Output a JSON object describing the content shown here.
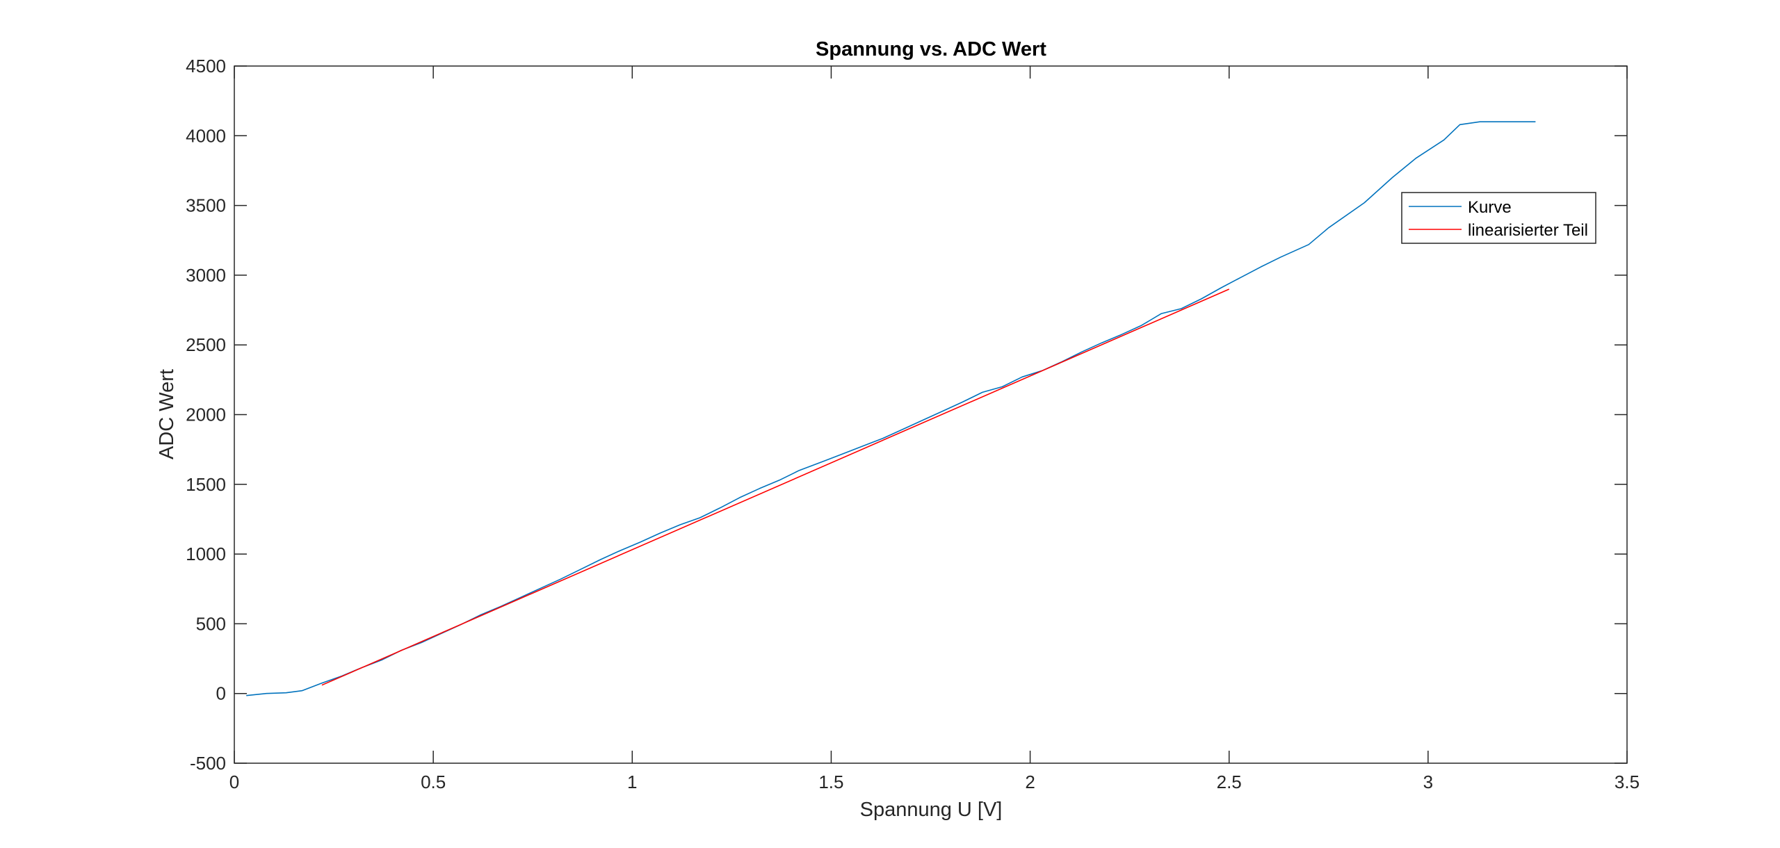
{
  "chart_data": {
    "type": "line",
    "title": "Spannung vs. ADC Wert",
    "xlabel": "Spannung U [V]",
    "ylabel": "ADC Wert",
    "xlim": [
      0,
      3.5
    ],
    "ylim": [
      -500,
      4500
    ],
    "xticks": [
      0,
      0.5,
      1,
      1.5,
      2,
      2.5,
      3,
      3.5
    ],
    "xtick_labels": [
      "0",
      "0.5",
      "1",
      "1.5",
      "2",
      "2.5",
      "3",
      "3.5"
    ],
    "yticks": [
      -500,
      0,
      500,
      1000,
      1500,
      2000,
      2500,
      3000,
      3500,
      4000,
      4500
    ],
    "ytick_labels": [
      "-500",
      "0",
      "500",
      "1000",
      "1500",
      "2000",
      "2500",
      "3000",
      "3500",
      "4000",
      "4500"
    ],
    "grid": false,
    "legend_position": "top-right",
    "series": [
      {
        "name": "Kurve",
        "color": "#0072BD",
        "x": [
          0.03,
          0.08,
          0.13,
          0.17,
          0.22,
          0.27,
          0.32,
          0.37,
          0.42,
          0.47,
          0.52,
          0.57,
          0.62,
          0.67,
          0.72,
          0.77,
          0.82,
          0.87,
          0.92,
          0.97,
          1.02,
          1.07,
          1.12,
          1.17,
          1.22,
          1.27,
          1.32,
          1.37,
          1.42,
          1.48,
          1.53,
          1.58,
          1.63,
          1.68,
          1.73,
          1.78,
          1.83,
          1.88,
          1.93,
          1.98,
          2.03,
          2.08,
          2.13,
          2.18,
          2.23,
          2.28,
          2.33,
          2.38,
          2.43,
          2.48,
          2.53,
          2.58,
          2.63,
          2.7,
          2.75,
          2.84,
          2.91,
          2.97,
          3.04,
          3.08,
          3.13,
          3.2,
          3.27
        ],
        "y": [
          -15,
          0,
          5,
          20,
          75,
          125,
          185,
          240,
          310,
          365,
          430,
          495,
          565,
          625,
          690,
          755,
          820,
          890,
          960,
          1025,
          1085,
          1150,
          1210,
          1260,
          1330,
          1405,
          1470,
          1530,
          1600,
          1665,
          1720,
          1775,
          1830,
          1895,
          1960,
          2025,
          2090,
          2160,
          2200,
          2270,
          2315,
          2380,
          2450,
          2515,
          2575,
          2640,
          2725,
          2760,
          2830,
          2910,
          2985,
          3060,
          3130,
          3220,
          3340,
          3520,
          3700,
          3840,
          3970,
          4080,
          4100,
          4100,
          4100
        ]
      },
      {
        "name": "linearisierter Teil",
        "color": "#FF0000",
        "x": [
          0.22,
          2.5
        ],
        "y": [
          60,
          2900
        ]
      }
    ]
  }
}
